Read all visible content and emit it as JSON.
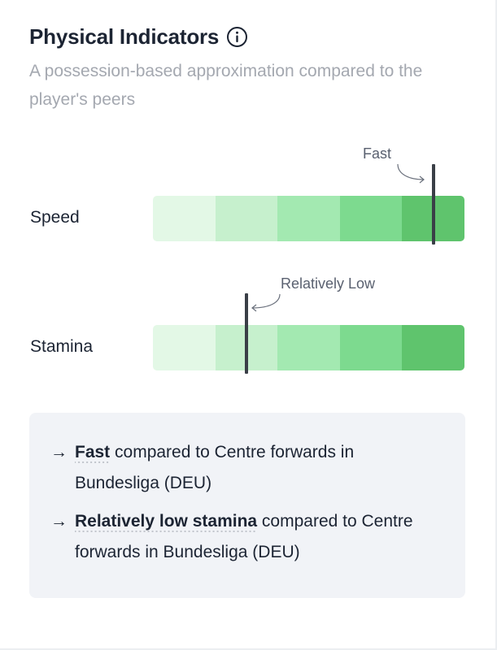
{
  "header": {
    "title": "Physical Indicators",
    "subtitle": "A possession-based approximation compared to the player's peers",
    "info_icon": "info-circle-icon"
  },
  "scale_colors": [
    "#e3f8e6",
    "#c6f0cd",
    "#a3e9b1",
    "#7dda8f",
    "#5fc46d"
  ],
  "marker_color": "#3a3f47",
  "indicators": [
    {
      "label": "Speed",
      "rating": "Fast",
      "marker_position": 0.9
    },
    {
      "label": "Stamina",
      "rating": "Relatively Low",
      "marker_position": 0.3
    }
  ],
  "summary": {
    "items": [
      {
        "arrow": "→",
        "strong": "Fast",
        "rest": " compared to Centre forwards in Bundesliga (DEU)"
      },
      {
        "arrow": "→",
        "strong": "Relatively low stamina",
        "rest": " compared to Centre forwards in Bundesliga (DEU)"
      }
    ]
  }
}
